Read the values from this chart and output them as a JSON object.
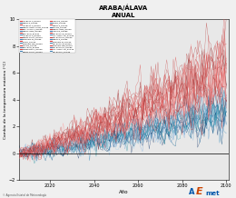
{
  "title": "ARABA/ÁLAVA",
  "subtitle": "ANUAL",
  "xlabel": "Año",
  "ylabel": "Cambio de la temperatura máxima (°C)",
  "xlim": [
    2006,
    2101
  ],
  "ylim": [
    -2,
    10
  ],
  "yticks": [
    -2,
    0,
    2,
    4,
    6,
    8,
    10
  ],
  "xticks": [
    2020,
    2040,
    2060,
    2080,
    2100
  ],
  "x_start": 2006,
  "x_end": 2100,
  "n_red_lines": 22,
  "n_blue_lines": 22,
  "background_color": "#e8e8e8",
  "plot_bg_color": "#e0e0e0",
  "hline_y": 0,
  "legend_items_col1": [
    "ACCESS1.0_RCP45",
    "ACCESS1.3_RCP45",
    "BCC-CSM1.1_RCP45",
    "BNU-ESM_RCP45",
    "CNRM-CM5A_RCP45",
    "CSIRO_RCP45",
    "CCSM4_RCP45",
    "HadGEM2CC_RCP45",
    "inmcm4_RCP45",
    "MIROC5_RCP45",
    "MIROC-ESM_RCP45",
    "MPI-ESM-LR_RCP45",
    "MPI-ESM-MR_RCP45",
    "NorESM1-M_RCP45",
    "NorESM1-ME_RCP45",
    "IPSL-CM5A-LR_RCP45"
  ],
  "legend_items_col2": [
    "MIROC5_RCP85",
    "MIROC-ESM-CHEM_RCP85",
    "MIROC-ESM_RCP85",
    "ACCESS1.0_RCP85",
    "NorESM1-M_RCP85",
    "NorESM1-ME_RCP85",
    "BNU-ESM_RCP85",
    "CNRM-CM5A_RCP85",
    "CSIRO_RCP85",
    "CCSM4_RCP85",
    "inmcm4_RCP85",
    "IPSL-CM5A-LR_RCP85",
    "MIROC5_RCP85",
    "MPI-ESM-LR_RCP85",
    "MPI-ESM-MR_RCP85",
    "MPI-ESM-P_RCP85"
  ],
  "footer_text": "© Agencia Estatal de Meteorología",
  "blue_colors": [
    "#aaccee",
    "#88aacc",
    "#6699bb",
    "#4488aa",
    "#336699",
    "#224477",
    "#113366",
    "#aabbdd",
    "#99ccee",
    "#77aadd",
    "#5599cc",
    "#3388bb",
    "#2277aa",
    "#116699",
    "#005588",
    "#004477",
    "#003366",
    "#88bbdd",
    "#66aacc",
    "#44aabb",
    "#2299aa",
    "#118899"
  ],
  "red_colors": [
    "#ffaaaa",
    "#ff8888",
    "#ff6666",
    "#ee5555",
    "#dd4444",
    "#cc3333",
    "#bb2222",
    "#aa1111",
    "#ff9999",
    "#ffbbbb",
    "#ee8888",
    "#dd6666",
    "#cc5555",
    "#bb4444",
    "#aa3333",
    "#993333",
    "#882222",
    "#ff7777",
    "#ee6666",
    "#dd5555",
    "#cc4444",
    "#bb3333"
  ]
}
